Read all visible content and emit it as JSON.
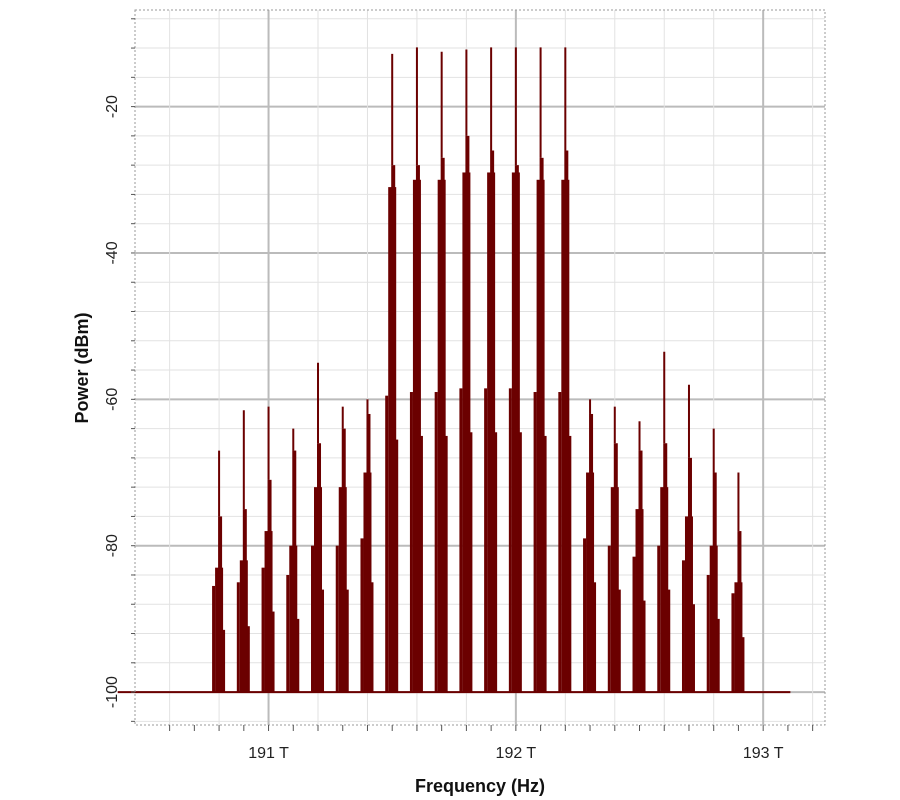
{
  "chart_data": {
    "type": "line",
    "title": "",
    "xlabel": "Frequency (Hz)",
    "ylabel": "Power (dBm)",
    "xlim": [
      190.46,
      193.25
    ],
    "ylim": [
      -104.5,
      -6.8
    ],
    "x_ticks": [
      {
        "v": 191,
        "label": "191 T"
      },
      {
        "v": 192,
        "label": "192 T"
      },
      {
        "v": 193,
        "label": "193 T"
      }
    ],
    "y_ticks": [
      {
        "v": -20,
        "label": "-20"
      },
      {
        "v": -40,
        "label": "-40"
      },
      {
        "v": -60,
        "label": "-60"
      },
      {
        "v": -80,
        "label": "-80"
      },
      {
        "v": -100,
        "label": "-100"
      }
    ],
    "grid": true,
    "noise_floor": -100,
    "floor_range_THz": [
      190.39,
      193.11
    ],
    "series_color": "#6b0000",
    "channels": [
      {
        "f": 190.8,
        "peak": -67,
        "sub": -76,
        "body": -83
      },
      {
        "f": 190.9,
        "peak": -61.5,
        "sub": -75,
        "body": -82
      },
      {
        "f": 191.0,
        "peak": -61,
        "sub": -71,
        "body": -78
      },
      {
        "f": 191.1,
        "peak": -64,
        "sub": -67,
        "body": -80
      },
      {
        "f": 191.2,
        "peak": -55,
        "sub": -66,
        "body": -72
      },
      {
        "f": 191.3,
        "peak": -61,
        "sub": -64,
        "body": -72
      },
      {
        "f": 191.4,
        "peak": -60,
        "sub": -62,
        "body": -70
      },
      {
        "f": 191.5,
        "peak": -12.8,
        "sub": -28,
        "body": -31
      },
      {
        "f": 191.6,
        "peak": -11.9,
        "sub": -28,
        "body": -30
      },
      {
        "f": 191.7,
        "peak": -12.5,
        "sub": -27,
        "body": -30
      },
      {
        "f": 191.8,
        "peak": -12.2,
        "sub": -24,
        "body": -29
      },
      {
        "f": 191.9,
        "peak": -11.9,
        "sub": -26,
        "body": -29
      },
      {
        "f": 192.0,
        "peak": -11.9,
        "sub": -28,
        "body": -29
      },
      {
        "f": 192.1,
        "peak": -11.9,
        "sub": -27,
        "body": -30
      },
      {
        "f": 192.2,
        "peak": -11.9,
        "sub": -26,
        "body": -30
      },
      {
        "f": 192.3,
        "peak": -60,
        "sub": -62,
        "body": -70
      },
      {
        "f": 192.4,
        "peak": -61,
        "sub": -66,
        "body": -72
      },
      {
        "f": 192.5,
        "peak": -63,
        "sub": -67,
        "body": -75
      },
      {
        "f": 192.6,
        "peak": -53.5,
        "sub": -66,
        "body": -72
      },
      {
        "f": 192.7,
        "peak": -58,
        "sub": -68,
        "body": -76
      },
      {
        "f": 192.8,
        "peak": -64,
        "sub": -70,
        "body": -80
      },
      {
        "f": 192.9,
        "peak": -70,
        "sub": -78,
        "body": -85
      }
    ]
  }
}
